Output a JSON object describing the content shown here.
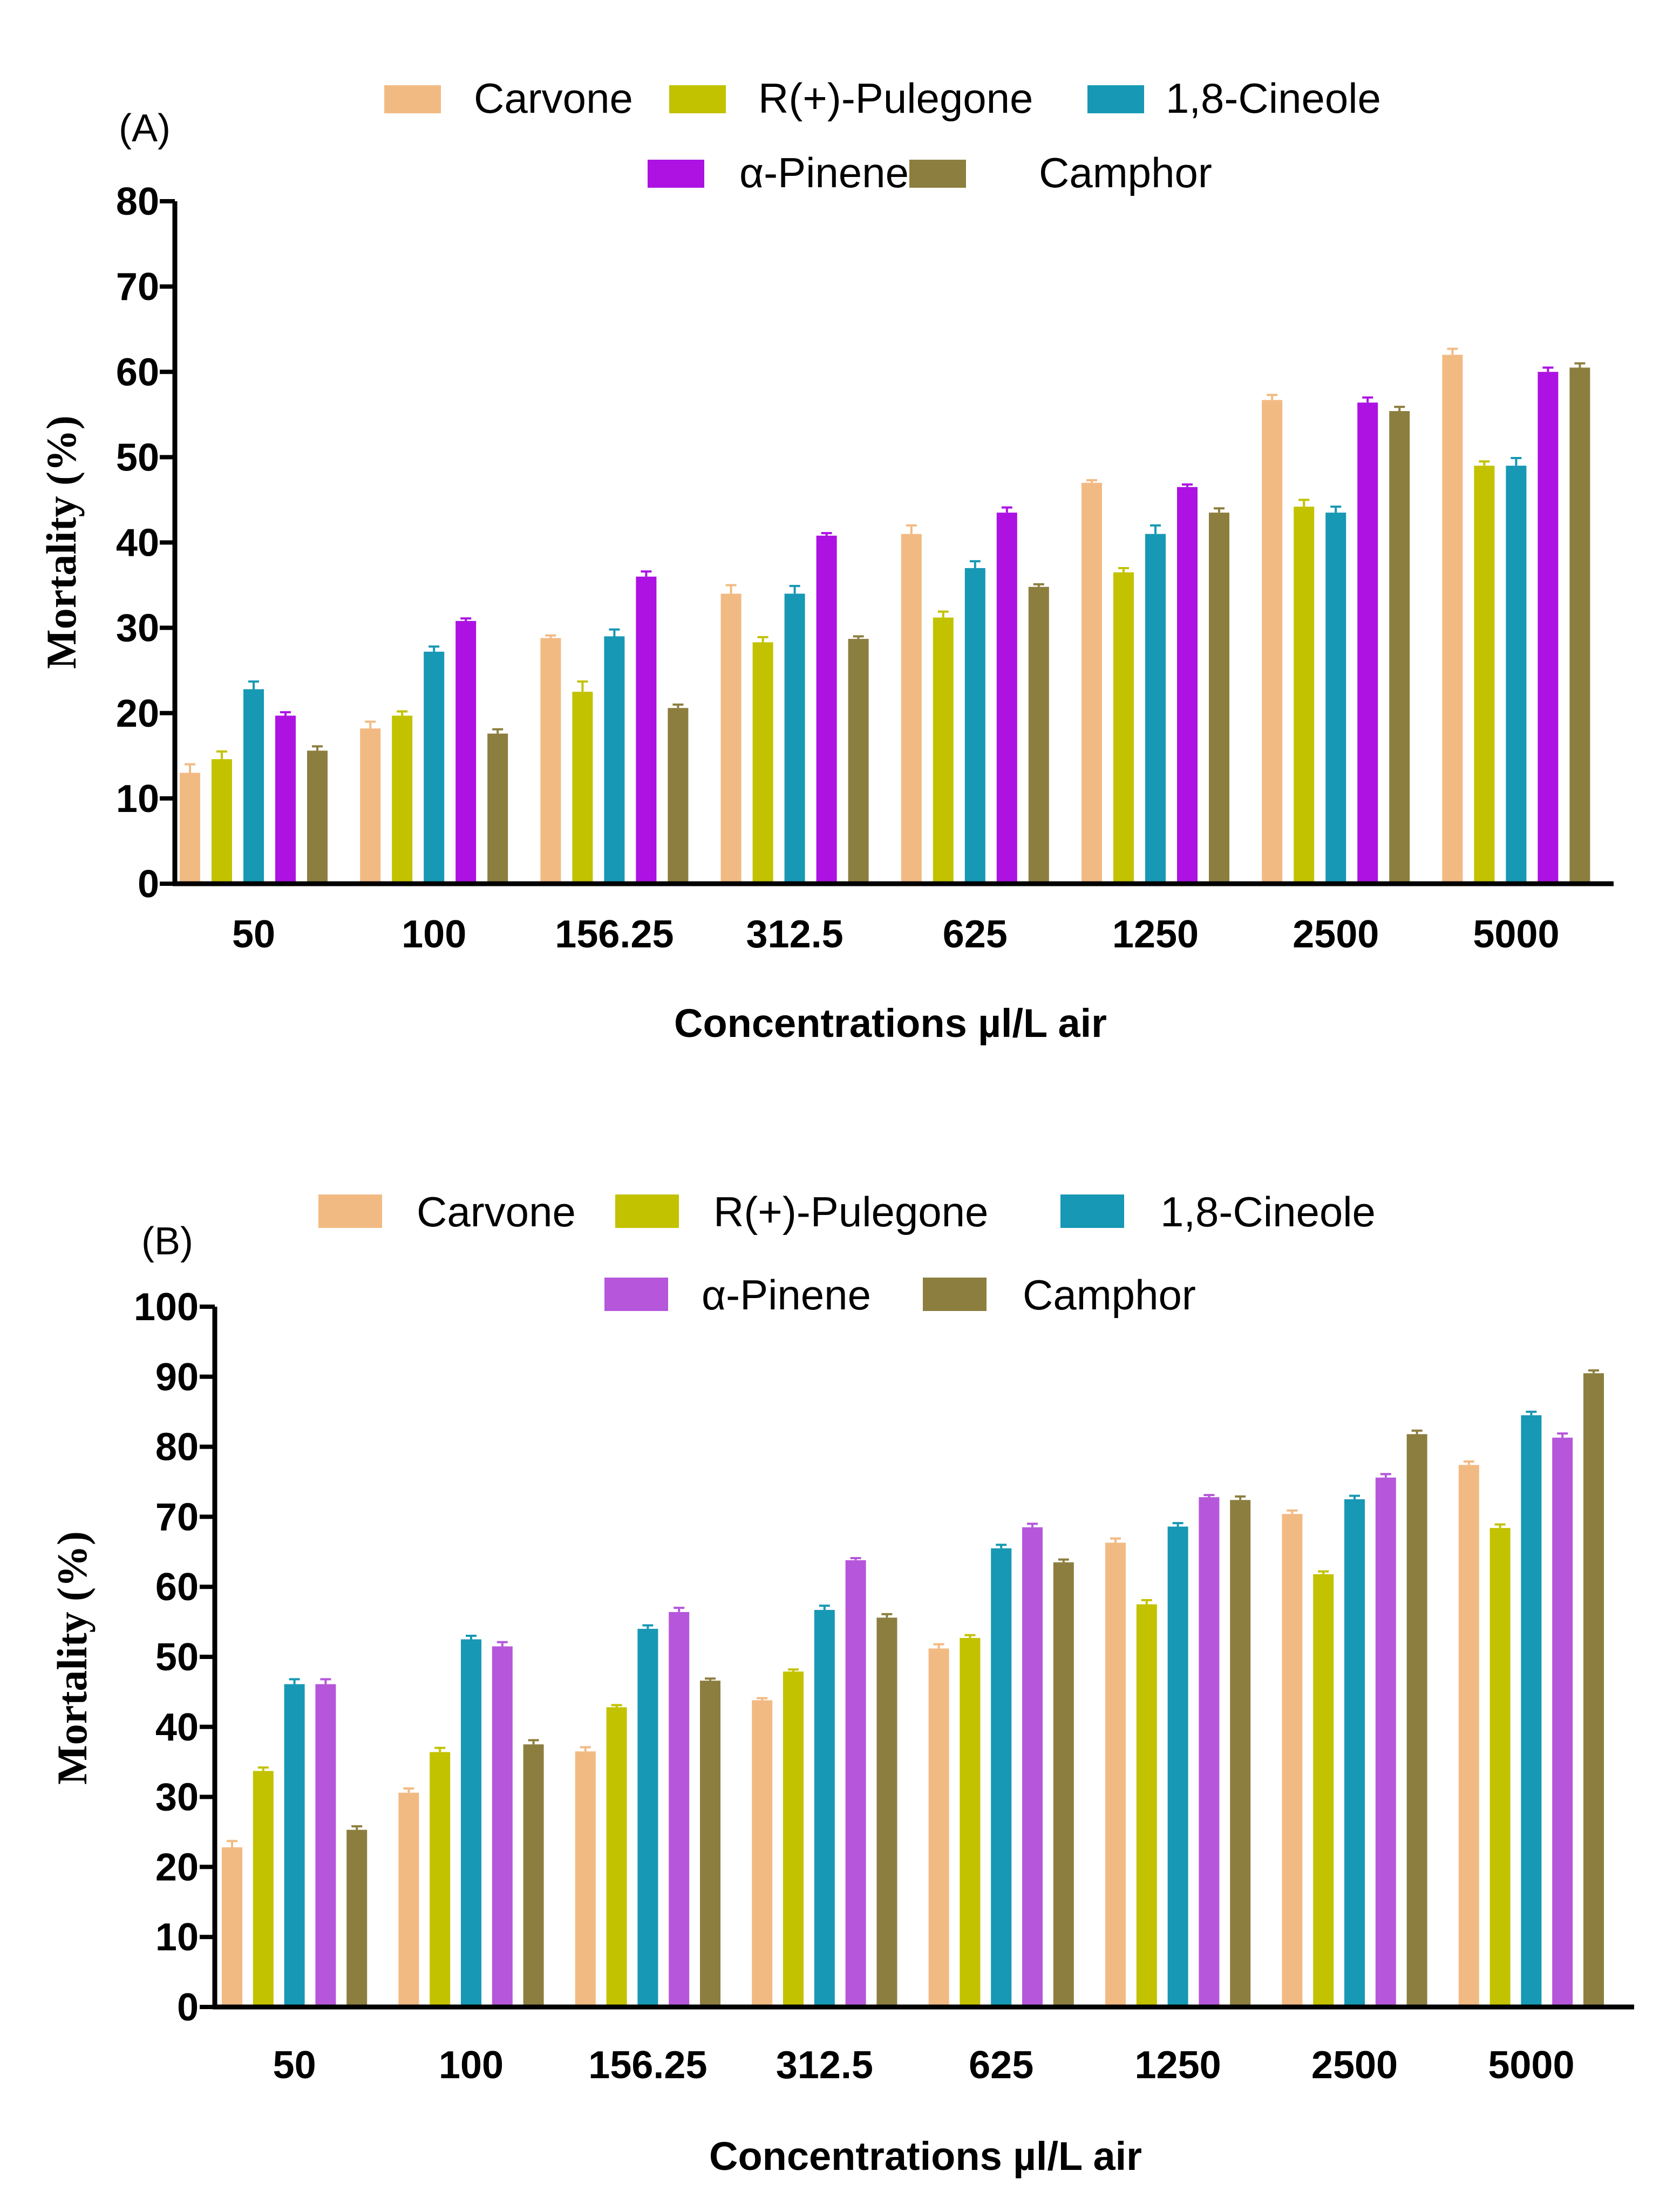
{
  "chart_data": [
    {
      "type": "bar",
      "panel_label": "(A)",
      "title": "",
      "xlabel": "Concentrations µl/L air",
      "ylabel": "Mortality (%)",
      "ylim": [
        0,
        80
      ],
      "yticks": [
        "0",
        "10",
        "20",
        "30",
        "40",
        "50",
        "60",
        "70",
        "80"
      ],
      "categories": [
        "50",
        "100",
        "156.25",
        "312.5",
        "625",
        "1250",
        "2500",
        "5000"
      ],
      "legend_rows": [
        [
          "Carvone",
          "R(+)-Pulegone",
          "1,8-Cineole"
        ],
        [
          "α-Pinene",
          "Camphor"
        ]
      ],
      "series": [
        {
          "name": "Carvone",
          "color": "#F2BA83",
          "values": [
            13.0,
            18.2,
            28.8,
            34.0,
            41.0,
            47.0,
            56.7,
            62.0
          ],
          "errors": [
            1.0,
            0.8,
            0.3,
            1.0,
            1.0,
            0.3,
            0.6,
            0.7
          ]
        },
        {
          "name": "R(+)-Pulegone",
          "color": "#C2C200",
          "values": [
            14.6,
            19.7,
            22.5,
            28.3,
            31.2,
            36.5,
            44.2,
            49.0
          ],
          "errors": [
            0.9,
            0.5,
            1.2,
            0.6,
            0.7,
            0.5,
            0.8,
            0.5
          ]
        },
        {
          "name": "1,8-Cineole",
          "color": "#1798B4",
          "values": [
            22.8,
            27.2,
            29.0,
            34.0,
            37.0,
            41.0,
            43.5,
            49.0
          ],
          "errors": [
            0.9,
            0.6,
            0.8,
            0.9,
            0.8,
            1.0,
            0.7,
            0.9
          ]
        },
        {
          "name": "α-Pinene",
          "color": "#AD12E3",
          "values": [
            19.7,
            30.8,
            36.0,
            40.8,
            43.5,
            46.5,
            56.4,
            60.0
          ],
          "errors": [
            0.4,
            0.3,
            0.6,
            0.3,
            0.6,
            0.3,
            0.6,
            0.5
          ]
        },
        {
          "name": "Camphor",
          "color": "#8C7E3F",
          "values": [
            15.6,
            17.6,
            20.6,
            28.7,
            34.8,
            43.5,
            55.4,
            60.5
          ],
          "errors": [
            0.5,
            0.5,
            0.4,
            0.3,
            0.3,
            0.5,
            0.5,
            0.5
          ]
        }
      ]
    },
    {
      "type": "bar",
      "panel_label": "(B)",
      "title": "",
      "xlabel": "Concentrations µl/L air",
      "ylabel": "Mortality (%)",
      "ylim": [
        0,
        100
      ],
      "yticks": [
        "0",
        "10",
        "20",
        "30",
        "40",
        "50",
        "60",
        "70",
        "80",
        "90",
        "100"
      ],
      "categories": [
        "50",
        "100",
        "156.25",
        "312.5",
        "625",
        "1250",
        "2500",
        "5000"
      ],
      "legend_rows": [
        [
          "Carvone",
          "R(+)-Pulegone",
          "1,8-Cineole"
        ],
        [
          "α-Pinene",
          "Camphor"
        ]
      ],
      "series": [
        {
          "name": "Carvone",
          "color": "#F2BA83",
          "values": [
            22.8,
            30.6,
            36.5,
            43.8,
            51.2,
            66.3,
            70.4,
            77.4
          ],
          "errors": [
            0.9,
            0.6,
            0.6,
            0.3,
            0.6,
            0.6,
            0.5,
            0.5
          ]
        },
        {
          "name": "R(+)-Pulegone",
          "color": "#C2C200",
          "values": [
            33.7,
            36.4,
            42.8,
            47.9,
            52.7,
            57.5,
            61.8,
            68.4
          ],
          "errors": [
            0.5,
            0.6,
            0.3,
            0.3,
            0.4,
            0.6,
            0.4,
            0.5
          ]
        },
        {
          "name": "1,8-Cineole",
          "color": "#1798B4",
          "values": [
            46.1,
            52.5,
            54.0,
            56.7,
            65.5,
            68.6,
            72.5,
            84.5
          ],
          "errors": [
            0.7,
            0.5,
            0.5,
            0.6,
            0.5,
            0.5,
            0.5,
            0.5
          ]
        },
        {
          "name": "α-Pinene",
          "color": "#B657DB",
          "values": [
            46.1,
            51.5,
            56.4,
            63.8,
            68.5,
            72.8,
            75.6,
            81.3
          ],
          "errors": [
            0.7,
            0.6,
            0.6,
            0.3,
            0.5,
            0.3,
            0.5,
            0.6
          ]
        },
        {
          "name": "Camphor",
          "color": "#8C7E3F",
          "values": [
            25.3,
            37.5,
            46.6,
            55.6,
            63.5,
            72.4,
            81.8,
            90.5
          ],
          "errors": [
            0.5,
            0.6,
            0.3,
            0.5,
            0.4,
            0.5,
            0.5,
            0.4
          ]
        }
      ]
    }
  ]
}
